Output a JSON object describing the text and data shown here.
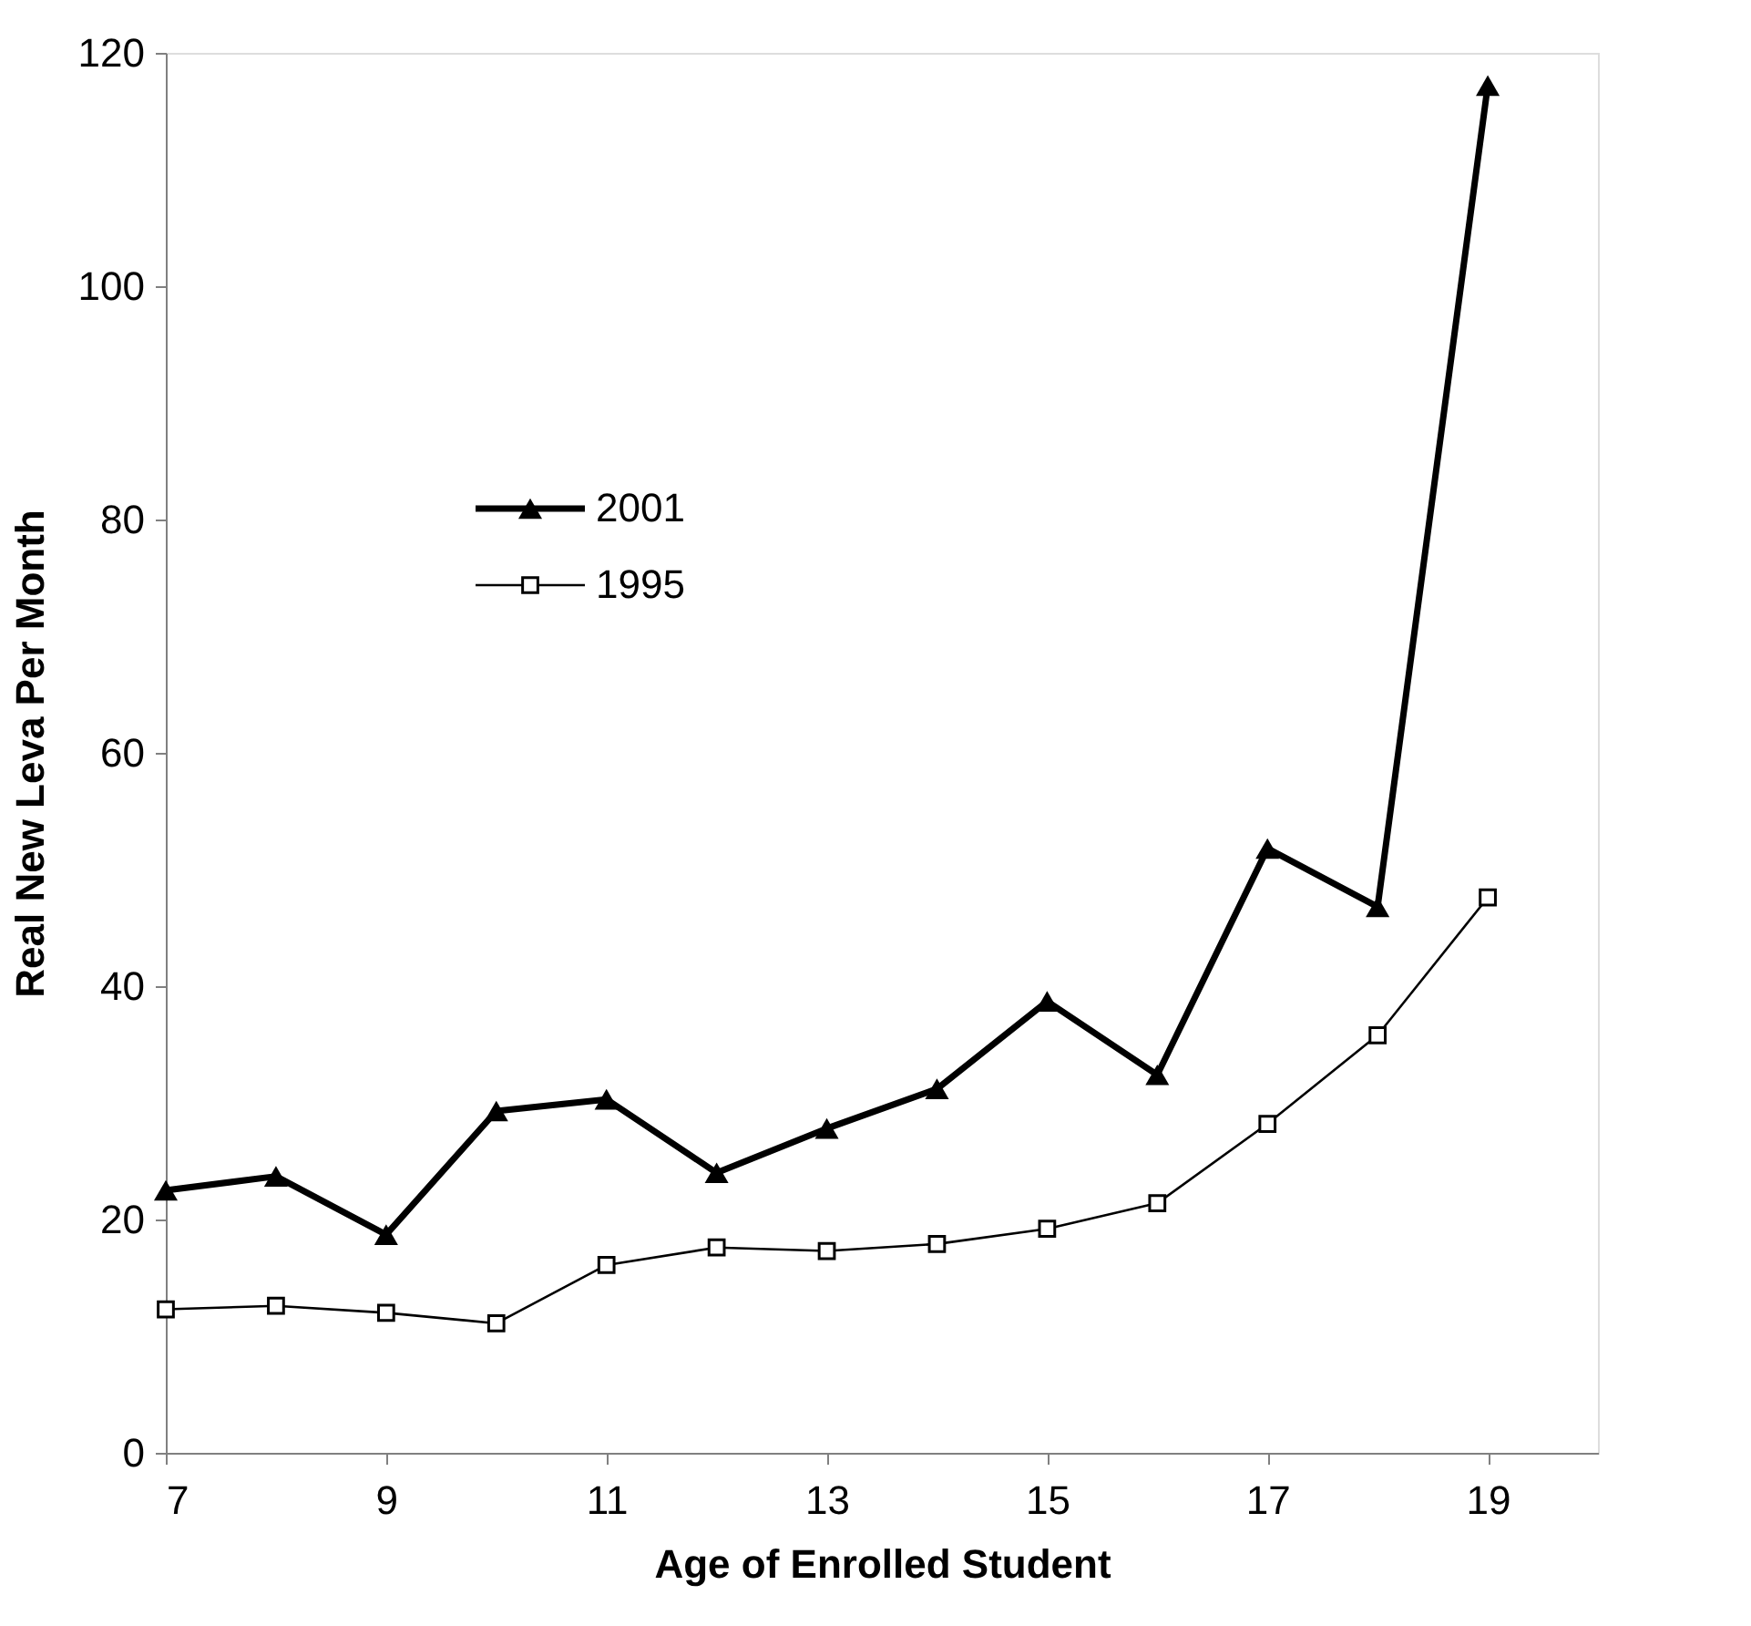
{
  "chart_data": {
    "type": "line",
    "xlabel": "Age of Enrolled Student",
    "ylabel": "Real New Leva Per Month",
    "x": [
      7,
      8,
      9,
      10,
      11,
      12,
      13,
      14,
      15,
      16,
      17,
      18,
      19
    ],
    "series": [
      {
        "name": "2001",
        "color": "#000000",
        "marker": "triangle",
        "values": [
          22.5,
          23.7,
          18.7,
          29.3,
          30.3,
          24.0,
          27.8,
          31.2,
          38.7,
          32.4,
          51.8,
          46.8,
          117.2
        ]
      },
      {
        "name": "1995",
        "color": "#000000",
        "marker": "square",
        "values": [
          12.3,
          12.6,
          12.0,
          11.1,
          16.1,
          17.6,
          17.3,
          17.9,
          19.2,
          21.4,
          28.2,
          35.8,
          47.6
        ]
      }
    ],
    "xlim": [
      7,
      20
    ],
    "xticks": [
      7,
      9,
      11,
      13,
      15,
      17,
      19
    ],
    "ylim": [
      0,
      120
    ],
    "yticks": [
      0,
      20,
      40,
      60,
      80,
      100,
      120
    ],
    "grid": false,
    "legend": "left",
    "line_style": "solid"
  }
}
